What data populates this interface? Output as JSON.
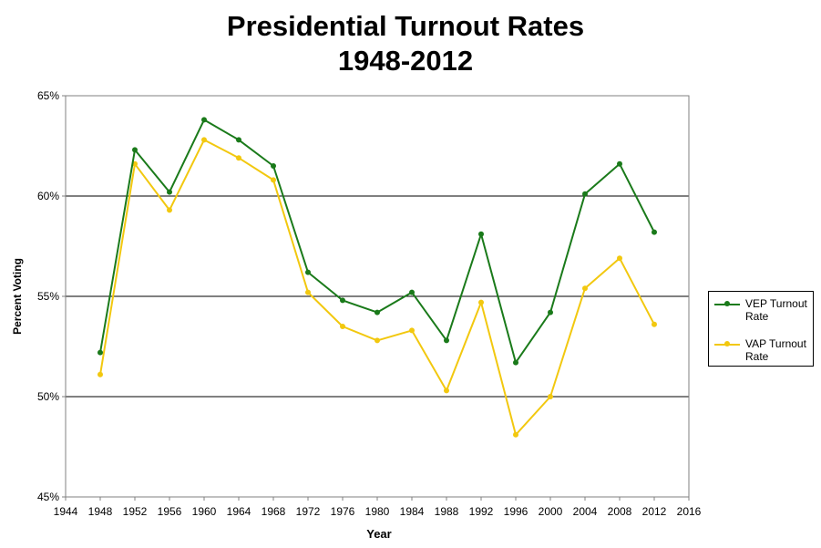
{
  "chart_data": {
    "type": "line",
    "title": "Presidential Turnout Rates",
    "subtitle": "1948-2012",
    "xlabel": "Year",
    "ylabel": "Percent Voting",
    "xlim": [
      1944,
      2016
    ],
    "ylim": [
      45,
      65
    ],
    "x_ticks": [
      "1944",
      "1948",
      "1952",
      "1956",
      "1960",
      "1964",
      "1968",
      "1972",
      "1976",
      "1980",
      "1984",
      "1988",
      "1992",
      "1996",
      "2000",
      "2004",
      "2008",
      "2012",
      "2016"
    ],
    "y_ticks": [
      "45%",
      "50%",
      "55%",
      "60%",
      "65%"
    ],
    "grid": "horizontal major gridlines",
    "legend_position": "right",
    "x": [
      1948,
      1952,
      1956,
      1960,
      1964,
      1968,
      1972,
      1976,
      1980,
      1984,
      1988,
      1992,
      1996,
      2000,
      2004,
      2008,
      2012
    ],
    "series": [
      {
        "name": "VEP Turnout Rate",
        "color": "#1a7a1a",
        "values": [
          52.2,
          62.3,
          60.2,
          63.8,
          62.8,
          61.5,
          56.2,
          54.8,
          54.2,
          55.2,
          52.8,
          58.1,
          51.7,
          54.2,
          60.1,
          61.6,
          58.2
        ]
      },
      {
        "name": "VAP Turnout Rate",
        "color": "#f2c80f",
        "values": [
          51.1,
          61.6,
          59.3,
          62.8,
          61.9,
          60.8,
          55.2,
          53.5,
          52.8,
          53.3,
          50.3,
          54.7,
          48.1,
          50.0,
          55.4,
          56.9,
          53.6
        ]
      }
    ]
  }
}
